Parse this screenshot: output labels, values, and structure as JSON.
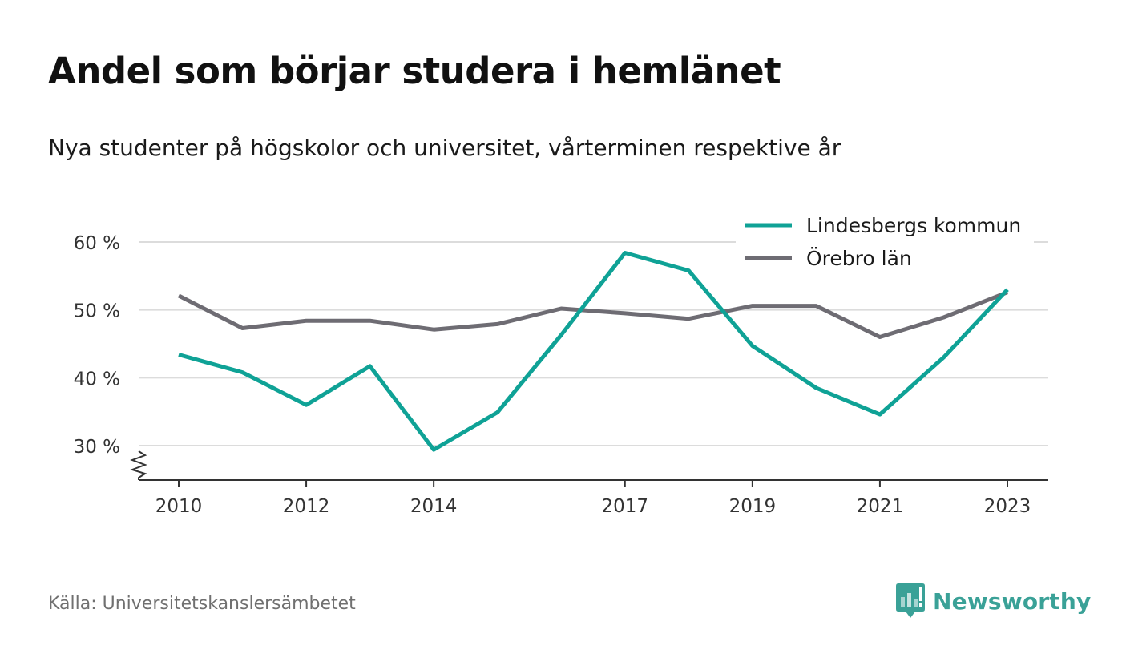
{
  "title": "Andel som börjar studera i hemlänet",
  "subtitle": "Nya studenter på högskolor och universitet, vårterminen respektive år",
  "source": "Källa: Universitetskanslersämbetet",
  "brand": {
    "name": "Newsworthy",
    "icon": "newsworthy-logo-icon",
    "color": "#3aa197"
  },
  "chart_data": {
    "type": "line",
    "x": [
      2010,
      2011,
      2012,
      2013,
      2014,
      2015,
      2016,
      2017,
      2018,
      2019,
      2020,
      2021,
      2022,
      2023
    ],
    "x_tick_labels": [
      "2010",
      "2012",
      "2014",
      "2017",
      "2019",
      "2021",
      "2023"
    ],
    "y_ticks": [
      30,
      40,
      50,
      60
    ],
    "y_tick_labels": [
      "30 %",
      "40 %",
      "50 %",
      "60 %"
    ],
    "ylim": [
      25,
      60
    ],
    "y_axis_break": true,
    "grid": "horizontal",
    "legend_position": "top-right",
    "series": [
      {
        "name": "Lindesbergs kommun",
        "color": "#0fa296",
        "values": [
          43.4,
          40.8,
          36.0,
          41.7,
          29.4,
          34.9,
          46.3,
          58.4,
          55.8,
          44.7,
          38.5,
          34.6,
          43.0,
          53.0
        ]
      },
      {
        "name": "Örebro län",
        "color": "#6e6c73",
        "values": [
          52.1,
          47.3,
          48.4,
          48.4,
          47.1,
          47.9,
          50.2,
          49.5,
          48.7,
          50.6,
          50.6,
          46.0,
          48.9,
          52.6
        ]
      }
    ]
  }
}
